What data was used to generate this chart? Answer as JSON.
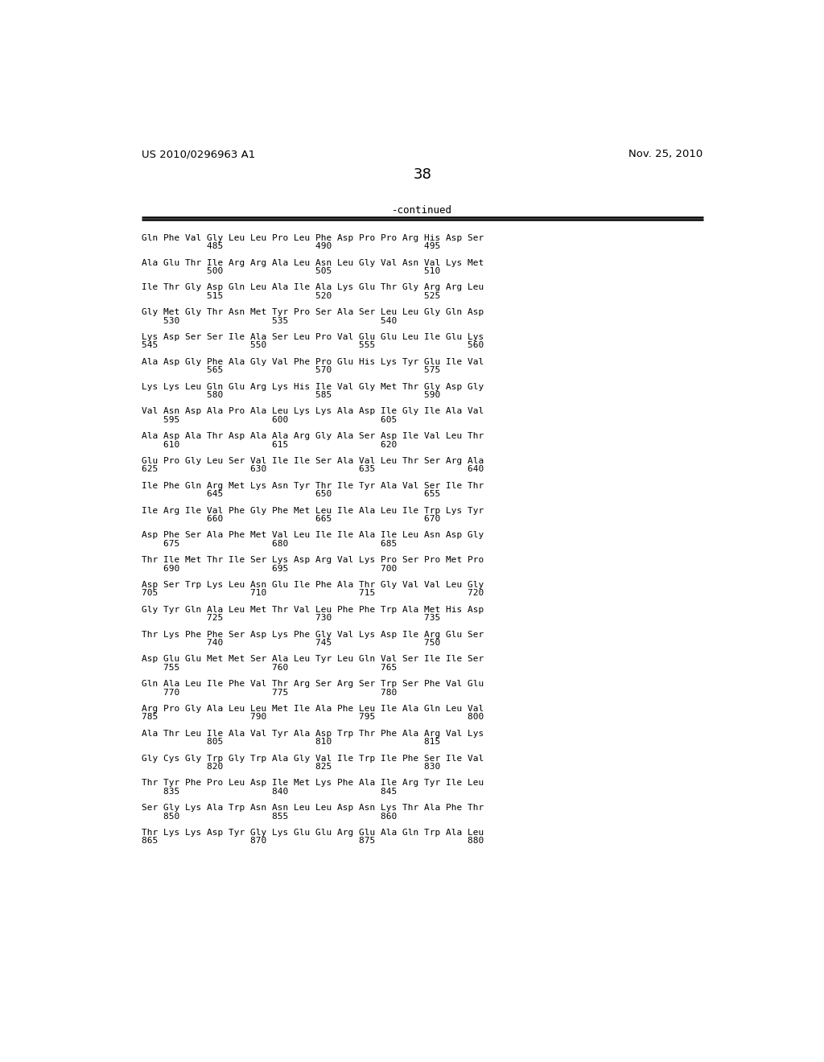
{
  "header_left": "US 2010/0296963 A1",
  "header_right": "Nov. 25, 2010",
  "page_number": "38",
  "continued_label": "-continued",
  "background_color": "#ffffff",
  "text_color": "#000000",
  "sequence_blocks": [
    {
      "aa": "Gln Phe Val Gly Leu Leu Pro Leu Phe Asp Pro Pro Arg His Asp Ser",
      "nums": "            485                 490                 495"
    },
    {
      "aa": "Ala Glu Thr Ile Arg Arg Ala Leu Asn Leu Gly Val Asn Val Lys Met",
      "nums": "            500                 505                 510"
    },
    {
      "aa": "Ile Thr Gly Asp Gln Leu Ala Ile Ala Lys Glu Thr Gly Arg Arg Leu",
      "nums": "            515                 520                 525"
    },
    {
      "aa": "Gly Met Gly Thr Asn Met Tyr Pro Ser Ala Ser Leu Leu Gly Gln Asp",
      "nums": "    530                 535                 540"
    },
    {
      "aa": "Lys Asp Ser Ser Ile Ala Ser Leu Pro Val Glu Glu Leu Ile Glu Lys",
      "nums": "545                 550                 555                 560"
    },
    {
      "aa": "Ala Asp Gly Phe Ala Gly Val Phe Pro Glu His Lys Tyr Glu Ile Val",
      "nums": "            565                 570                 575"
    },
    {
      "aa": "Lys Lys Leu Gln Glu Arg Lys His Ile Val Gly Met Thr Gly Asp Gly",
      "nums": "            580                 585                 590"
    },
    {
      "aa": "Val Asn Asp Ala Pro Ala Leu Lys Lys Ala Asp Ile Gly Ile Ala Val",
      "nums": "    595                 600                 605"
    },
    {
      "aa": "Ala Asp Ala Thr Asp Ala Ala Arg Gly Ala Ser Asp Ile Val Leu Thr",
      "nums": "    610                 615                 620"
    },
    {
      "aa": "Glu Pro Gly Leu Ser Val Ile Ile Ser Ala Val Leu Thr Ser Arg Ala",
      "nums": "625                 630                 635                 640"
    },
    {
      "aa": "Ile Phe Gln Arg Met Lys Asn Tyr Thr Ile Tyr Ala Val Ser Ile Thr",
      "nums": "            645                 650                 655"
    },
    {
      "aa": "Ile Arg Ile Val Phe Gly Phe Met Leu Ile Ala Leu Ile Trp Lys Tyr",
      "nums": "            660                 665                 670"
    },
    {
      "aa": "Asp Phe Ser Ala Phe Met Val Leu Ile Ile Ala Ile Leu Asn Asp Gly",
      "nums": "    675                 680                 685"
    },
    {
      "aa": "Thr Ile Met Thr Ile Ser Lys Asp Arg Val Lys Pro Ser Pro Met Pro",
      "nums": "    690                 695                 700"
    },
    {
      "aa": "Asp Ser Trp Lys Leu Asn Glu Ile Phe Ala Thr Gly Val Val Leu Gly",
      "nums": "705                 710                 715                 720"
    },
    {
      "aa": "Gly Tyr Gln Ala Leu Met Thr Val Leu Phe Phe Trp Ala Met His Asp",
      "nums": "            725                 730                 735"
    },
    {
      "aa": "Thr Lys Phe Phe Ser Asp Lys Phe Gly Val Lys Asp Ile Arg Glu Ser",
      "nums": "            740                 745                 750"
    },
    {
      "aa": "Asp Glu Glu Met Met Ser Ala Leu Tyr Leu Gln Val Ser Ile Ile Ser",
      "nums": "    755                 760                 765"
    },
    {
      "aa": "Gln Ala Leu Ile Phe Val Thr Arg Ser Arg Ser Trp Ser Phe Val Glu",
      "nums": "    770                 775                 780"
    },
    {
      "aa": "Arg Pro Gly Ala Leu Leu Met Ile Ala Phe Leu Ile Ala Gln Leu Val",
      "nums": "785                 790                 795                 800"
    },
    {
      "aa": "Ala Thr Leu Ile Ala Val Tyr Ala Asp Trp Thr Phe Ala Arg Val Lys",
      "nums": "            805                 810                 815"
    },
    {
      "aa": "Gly Cys Gly Trp Gly Trp Ala Gly Val Ile Trp Ile Phe Ser Ile Val",
      "nums": "            820                 825                 830"
    },
    {
      "aa": "Thr Tyr Phe Pro Leu Asp Ile Met Lys Phe Ala Ile Arg Tyr Ile Leu",
      "nums": "    835                 840                 845"
    },
    {
      "aa": "Ser Gly Lys Ala Trp Asn Asn Leu Leu Asp Asn Lys Thr Ala Phe Thr",
      "nums": "    850                 855                 860"
    },
    {
      "aa": "Thr Lys Lys Asp Tyr Gly Lys Glu Glu Arg Glu Ala Gln Trp Ala Leu",
      "nums": "865                 870                 875                 880"
    }
  ]
}
